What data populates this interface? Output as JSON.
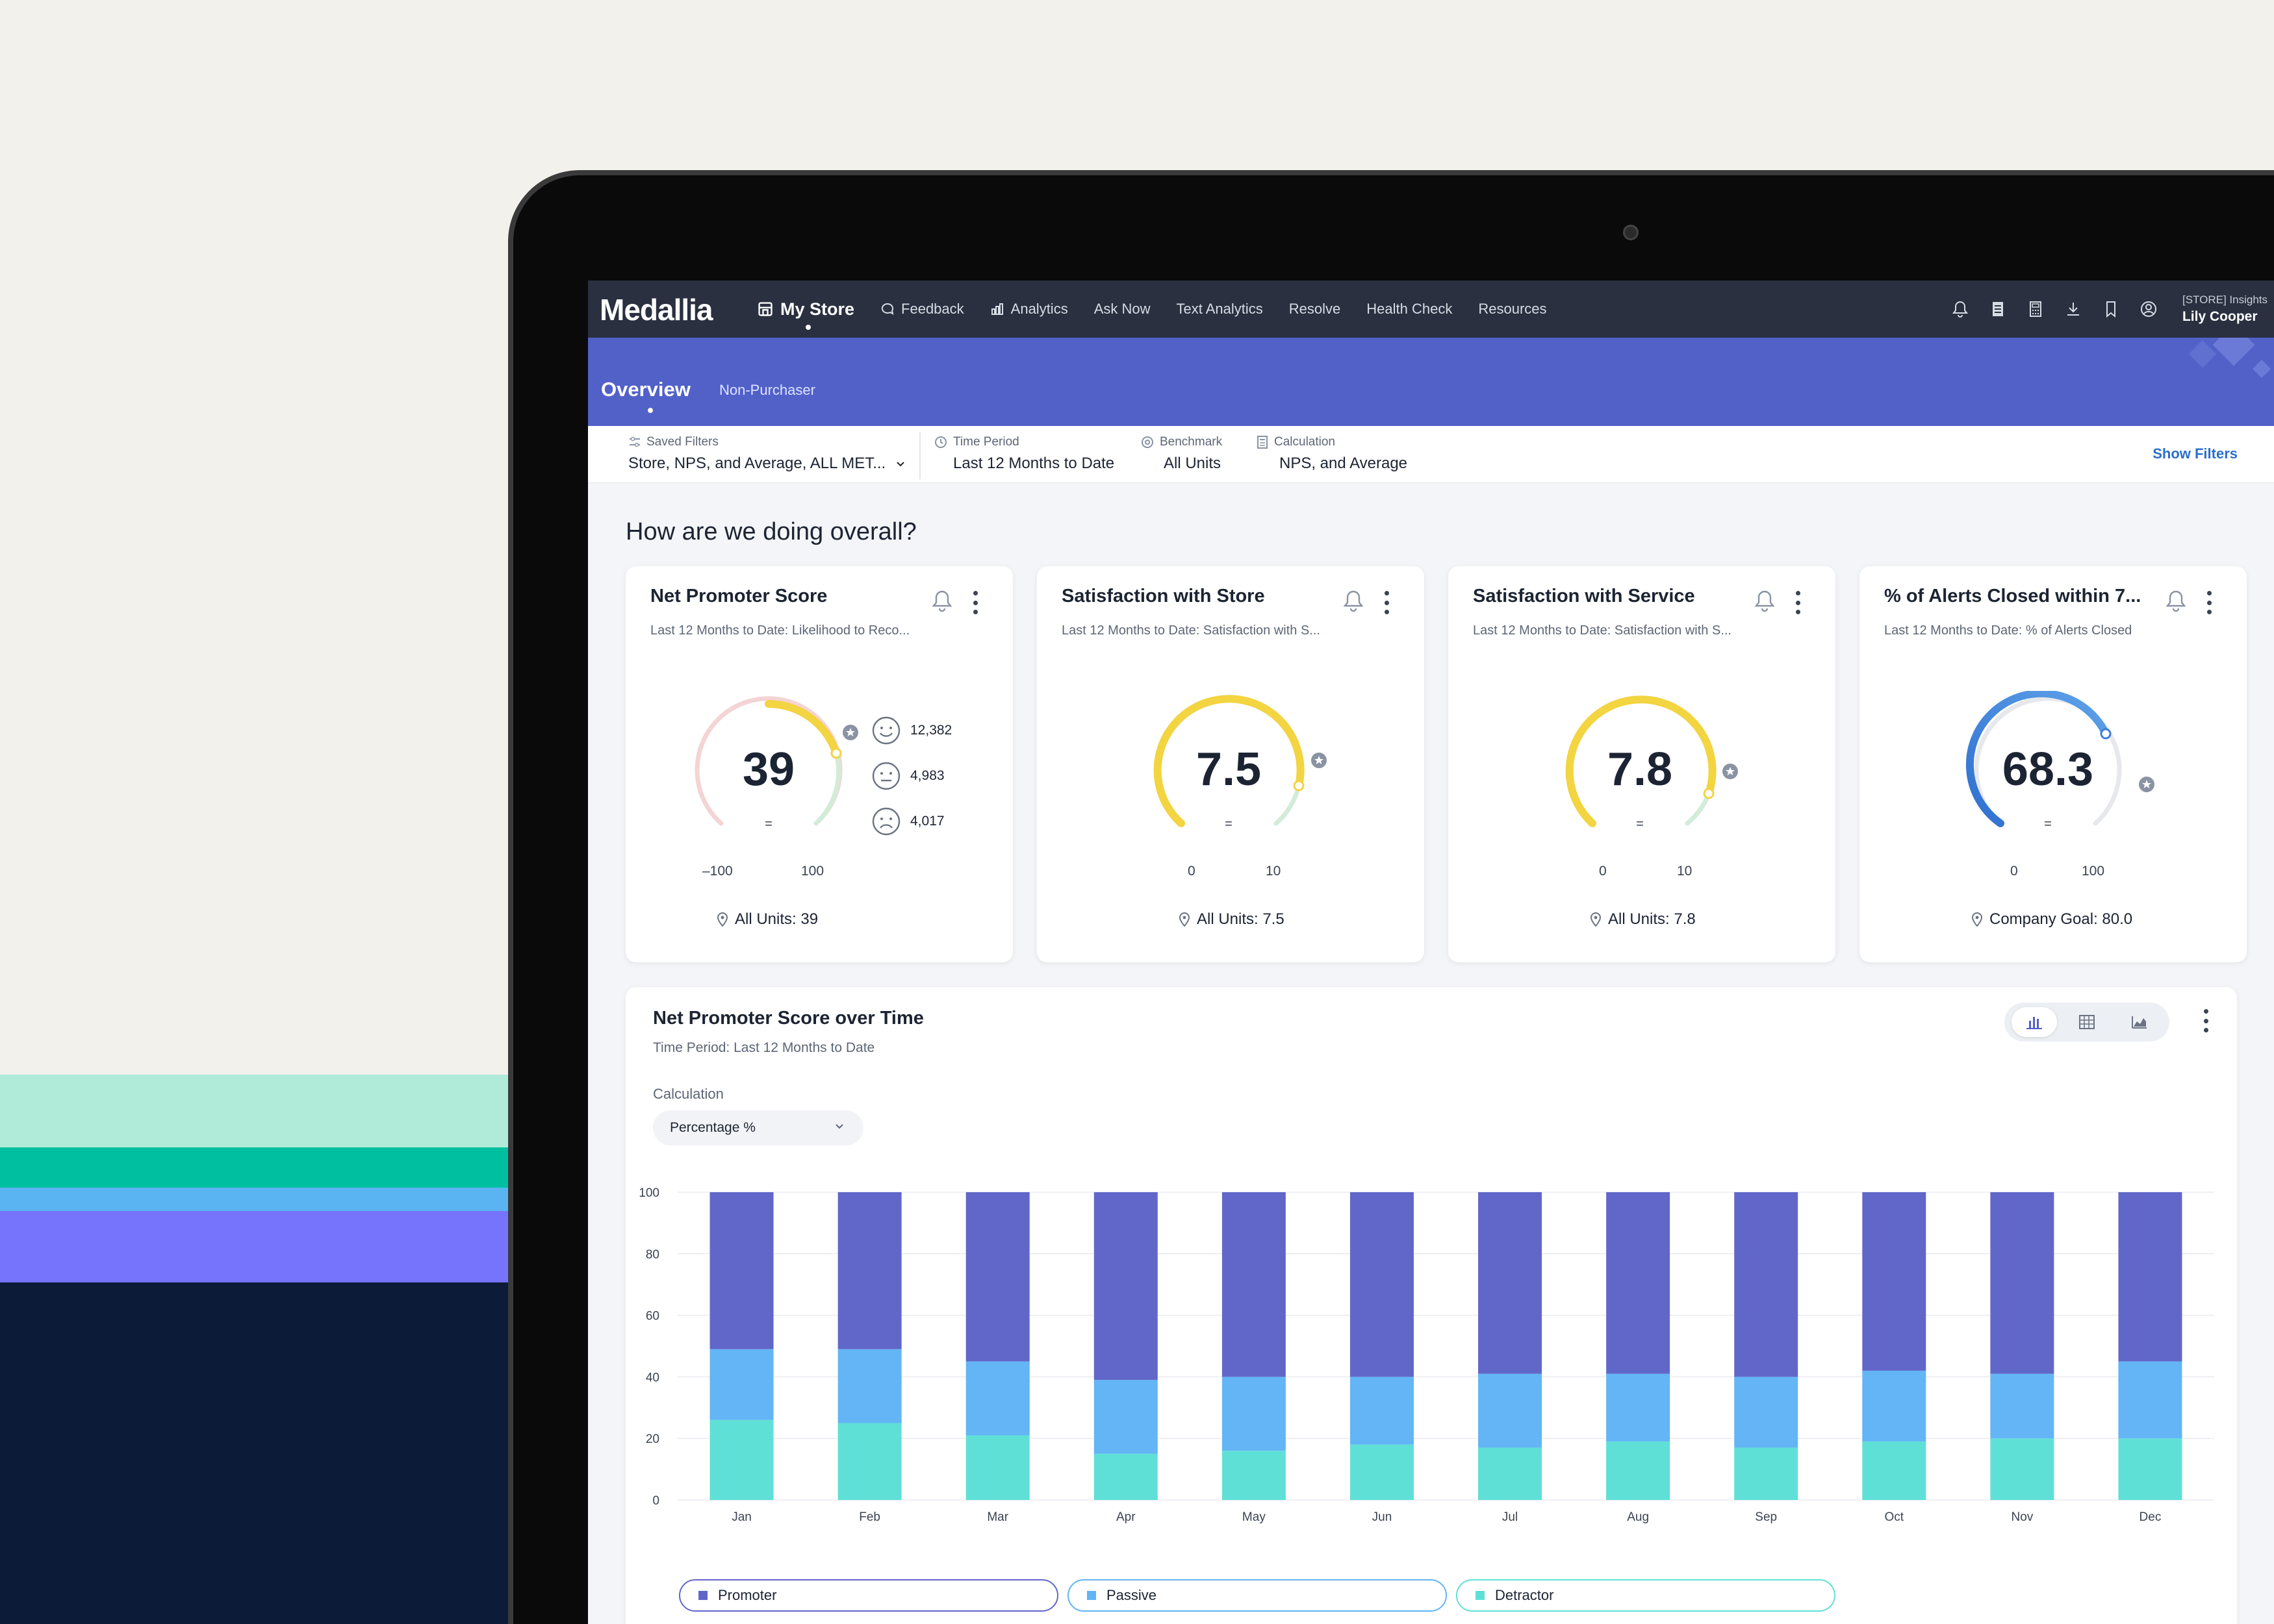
{
  "nav": {
    "logo": "Medallia",
    "items": [
      {
        "label": "My Store",
        "icon": "store-icon",
        "active": true
      },
      {
        "label": "Feedback",
        "icon": "chat-icon"
      },
      {
        "label": "Analytics",
        "icon": "analytics-icon"
      },
      {
        "label": "Ask Now"
      },
      {
        "label": "Text Analytics"
      },
      {
        "label": "Resolve"
      },
      {
        "label": "Health Check"
      },
      {
        "label": "Resources"
      }
    ],
    "right_icons": [
      "bell-icon",
      "report-icon",
      "calculator-icon",
      "download-icon",
      "bookmark-icon",
      "user-circle-icon"
    ],
    "user_context": "[STORE] Insights",
    "user_name": "Lily Cooper"
  },
  "overview": {
    "title": "Overview",
    "tab": "Non-Purchaser"
  },
  "filters": {
    "saved": {
      "label": "Saved Filters",
      "value": "Store, NPS, and Average, ALL MET..."
    },
    "time": {
      "label": "Time Period",
      "value": "Last 12 Months to Date"
    },
    "benchmark": {
      "label": "Benchmark",
      "value": "All Units"
    },
    "calculation": {
      "label": "Calculation",
      "value": "NPS, and Average"
    },
    "show_filters": "Show Filters"
  },
  "heading": "How are we doing overall?",
  "cards": [
    {
      "title": "Net Promoter Score",
      "subtitle": "Last 12 Months to Date: Likelihood to Reco...",
      "value": "39",
      "trend": "=",
      "min": "–100",
      "max": "100",
      "footer": "All Units: 39",
      "counts": {
        "promoters": "12,382",
        "passives": "4,983",
        "detractors": "4,017"
      }
    },
    {
      "title": "Satisfaction with Store",
      "subtitle": "Last 12 Months to Date: Satisfaction with S...",
      "value": "7.5",
      "trend": "=",
      "min": "0",
      "max": "10",
      "footer": "All Units: 7.5"
    },
    {
      "title": "Satisfaction with Service",
      "subtitle": "Last 12 Months to Date: Satisfaction with S...",
      "value": "7.8",
      "trend": "=",
      "min": "0",
      "max": "10",
      "footer": "All Units: 7.8"
    },
    {
      "title": "% of Alerts Closed within 7...",
      "subtitle": "Last 12 Months to Date: % of Alerts Closed",
      "value": "68.3",
      "trend": "=",
      "min": "0",
      "max": "100",
      "footer": "Company Goal: 80.0"
    }
  ],
  "panel": {
    "title": "Net Promoter Score over Time",
    "subtitle": "Time Period: Last 12 Months to Date",
    "calc_label": "Calculation",
    "calc_value": "Percentage %"
  },
  "colors": {
    "promoter": "#6167c9",
    "passive": "#63b5f5",
    "detractor": "#5fe0d7",
    "nps_gauge": "#f2d54e",
    "alerts_gauge": "#3e80d6"
  },
  "chart_data": {
    "type": "bar",
    "stacked": true,
    "categories": [
      "Jan",
      "Feb",
      "Mar",
      "Apr",
      "May",
      "Jun",
      "Jul",
      "Aug",
      "Sep",
      "Oct",
      "Nov",
      "Dec"
    ],
    "series": [
      {
        "name": "Detractor",
        "values": [
          26,
          25,
          21,
          15,
          16,
          18,
          17,
          19,
          17,
          19,
          20,
          20
        ]
      },
      {
        "name": "Passive",
        "values": [
          23,
          24,
          24,
          24,
          24,
          22,
          24,
          22,
          23,
          23,
          21,
          25
        ]
      },
      {
        "name": "Promoter",
        "values": [
          51,
          51,
          55,
          61,
          60,
          60,
          59,
          59,
          60,
          58,
          59,
          55
        ]
      }
    ],
    "ylim": [
      0,
      100
    ],
    "yticks": [
      "0",
      "20",
      "40",
      "60",
      "80",
      "100"
    ],
    "legend": "bottom",
    "grid": true
  }
}
